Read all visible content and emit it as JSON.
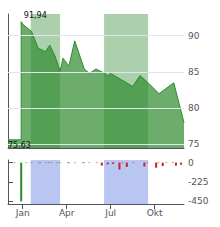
{
  "chart_data": [
    {
      "type": "area",
      "color": "#2d8a2d",
      "x": [
        0.0,
        0.9,
        0.9,
        1.05,
        1.05,
        1.6,
        1.6,
        2.05,
        2.05,
        2.55,
        2.55,
        2.85,
        2.85,
        3.2,
        3.2,
        3.55,
        3.55,
        3.75,
        3.75,
        4.15,
        4.15,
        4.55,
        4.55,
        5.2,
        5.2,
        5.55,
        5.55,
        6.0,
        6.0,
        6.6,
        6.6,
        6.8,
        6.8,
        7.0,
        7.0,
        8.5,
        8.5,
        9.0,
        9.0,
        9.55,
        9.55,
        10.3,
        10.3,
        11.3,
        11.3,
        12.0
      ],
      "values": [
        75.63,
        75.63,
        91.94,
        91.5,
        91.5,
        90.6,
        90.6,
        88.3,
        88.3,
        87.8,
        87.8,
        88.7,
        88.7,
        87.2,
        87.2,
        85.1,
        85.1,
        86.9,
        86.9,
        85.8,
        85.8,
        89.3,
        89.3,
        85.4,
        85.4,
        84.8,
        84.8,
        85.4,
        85.4,
        84.8,
        84.8,
        84.5,
        84.5,
        84.8,
        84.8,
        83.0,
        83.0,
        84.5,
        84.5,
        83.5,
        83.5,
        82.0,
        82.0,
        83.5,
        83.5,
        78.0
      ],
      "xlim": [
        0,
        12
      ],
      "ylim": [
        74.5,
        93.0
      ],
      "yticks": [
        75,
        80,
        85,
        90
      ],
      "grid": true,
      "tick_labels": "y",
      "shaded_regions": [
        [
          1.55,
          3.55
        ],
        [
          6.55,
          9.55
        ]
      ],
      "annotations": [
        {
          "text": "91,94",
          "x": 1.08,
          "y": 91.94
        },
        {
          "text": "75,63",
          "x": 0.0,
          "y": 75.63
        }
      ]
    },
    {
      "type": "bar",
      "x": [
        0.9,
        6.4,
        6.8,
        7.15,
        7.6,
        8.1,
        9.3,
        10.1,
        10.55,
        11.45,
        11.8,
        0.2,
        0.45,
        1.25,
        1.6,
        2.1,
        2.6,
        3.0,
        3.55,
        4.1,
        4.55,
        5.1,
        5.55,
        2.2,
        2.8,
        3.35,
        4.15,
        5.2,
        6.05,
        7.2,
        7.8,
        8.55,
        9.5,
        10.25,
        10.8,
        11.25
      ],
      "values": [
        -450,
        -35,
        -20,
        -15,
        -80,
        -50,
        -45,
        -60,
        -40,
        -35,
        -25,
        -6,
        -6,
        -6,
        -6,
        -6,
        -6,
        -6,
        -6,
        -6,
        -6,
        -6,
        -6,
        -6,
        -6,
        -6,
        -6,
        -6,
        -6,
        -6,
        -6,
        -6,
        -6,
        -6,
        -6,
        -6
      ],
      "colors": [
        "#2d8a2d",
        "#cc2222",
        "#cc2222",
        "#cc2222",
        "#cc2222",
        "#cc2222",
        "#cc2222",
        "#cc2222",
        "#cc2222",
        "#cc2222",
        "#cc2222",
        "#2d8a2d",
        "#2d8a2d",
        "#2d8a2d",
        "#2d8a2d",
        "#2d8a2d",
        "#2d8a2d",
        "#2d8a2d",
        "#2d8a2d",
        "#2d8a2d",
        "#2d8a2d",
        "#2d8a2d",
        "#2d8a2d",
        "#cc2222",
        "#cc2222",
        "#cc2222",
        "#cc2222",
        "#cc2222",
        "#cc2222",
        "#cc2222",
        "#cc2222",
        "#cc2222",
        "#cc2222",
        "#cc2222",
        "#cc2222",
        "#cc2222"
      ],
      "xlim": [
        0,
        12
      ],
      "ylim": [
        -480,
        30
      ],
      "xticks": [
        {
          "value": 1.0,
          "label": "Jan"
        },
        {
          "value": 4.0,
          "label": "Apr"
        },
        {
          "value": 7.0,
          "label": "Jul"
        },
        {
          "value": 10.0,
          "label": "Okt"
        }
      ],
      "yticks": [
        -450,
        -225,
        0
      ],
      "grid": false,
      "shaded_regions": [
        [
          1.55,
          3.55
        ],
        [
          6.55,
          9.55
        ]
      ]
    }
  ]
}
